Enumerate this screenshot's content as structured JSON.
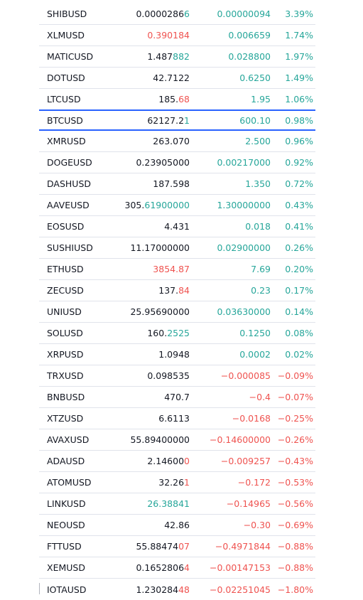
{
  "watchlist": {
    "rows": [
      {
        "symbol": "SHIBUSD",
        "last_main": "0.0000286",
        "last_tick": "6",
        "last_dir": "up",
        "change": "0.00000094",
        "change_pct": "3.39%",
        "dir": "up"
      },
      {
        "symbol": "XLMUSD",
        "last_main": "",
        "last_tick": "0.390184",
        "last_dir": "down",
        "change": "0.006659",
        "change_pct": "1.74%",
        "dir": "up"
      },
      {
        "symbol": "MATICUSD",
        "last_main": "1.487",
        "last_tick": "882",
        "last_dir": "up",
        "change": "0.028800",
        "change_pct": "1.97%",
        "dir": "up"
      },
      {
        "symbol": "DOTUSD",
        "last_main": "42.7122",
        "last_tick": "",
        "last_dir": "up",
        "change": "0.6250",
        "change_pct": "1.49%",
        "dir": "up"
      },
      {
        "symbol": "LTCUSD",
        "last_main": "185.",
        "last_tick": "68",
        "last_dir": "down",
        "change": "1.95",
        "change_pct": "1.06%",
        "dir": "up"
      },
      {
        "symbol": "BTCUSD",
        "last_main": "62127.2",
        "last_tick": "1",
        "last_dir": "up",
        "change": "600.10",
        "change_pct": "0.98%",
        "dir": "up",
        "selected": true
      },
      {
        "symbol": "XMRUSD",
        "last_main": "263.070",
        "last_tick": "",
        "last_dir": "up",
        "change": "2.500",
        "change_pct": "0.96%",
        "dir": "up"
      },
      {
        "symbol": "DOGEUSD",
        "last_main": "0.23905000",
        "last_tick": "",
        "last_dir": "up",
        "change": "0.00217000",
        "change_pct": "0.92%",
        "dir": "up"
      },
      {
        "symbol": "DASHUSD",
        "last_main": "187.598",
        "last_tick": "",
        "last_dir": "up",
        "change": "1.350",
        "change_pct": "0.72%",
        "dir": "up"
      },
      {
        "symbol": "AAVEUSD",
        "last_main": "305.",
        "last_tick": "61900000",
        "last_dir": "up",
        "change": "1.30000000",
        "change_pct": "0.43%",
        "dir": "up"
      },
      {
        "symbol": "EOSUSD",
        "last_main": "4.431",
        "last_tick": "",
        "last_dir": "up",
        "change": "0.018",
        "change_pct": "0.41%",
        "dir": "up"
      },
      {
        "symbol": "SUSHIUSD",
        "last_main": "11.17000000",
        "last_tick": "",
        "last_dir": "up",
        "change": "0.02900000",
        "change_pct": "0.26%",
        "dir": "up"
      },
      {
        "symbol": "ETHUSD",
        "last_main": "",
        "last_tick": "3854.87",
        "last_dir": "down",
        "change": "7.69",
        "change_pct": "0.20%",
        "dir": "up"
      },
      {
        "symbol": "ZECUSD",
        "last_main": "137.",
        "last_tick": "84",
        "last_dir": "down",
        "change": "0.23",
        "change_pct": "0.17%",
        "dir": "up"
      },
      {
        "symbol": "UNIUSD",
        "last_main": "25.95690000",
        "last_tick": "",
        "last_dir": "up",
        "change": "0.03630000",
        "change_pct": "0.14%",
        "dir": "up"
      },
      {
        "symbol": "SOLUSD",
        "last_main": "160.",
        "last_tick": "2525",
        "last_dir": "up",
        "change": "0.1250",
        "change_pct": "0.08%",
        "dir": "up"
      },
      {
        "symbol": "XRPUSD",
        "last_main": "1.0948",
        "last_tick": "",
        "last_dir": "up",
        "change": "0.0002",
        "change_pct": "0.02%",
        "dir": "up"
      },
      {
        "symbol": "TRXUSD",
        "last_main": "0.098535",
        "last_tick": "",
        "last_dir": "up",
        "change": "−0.000085",
        "change_pct": "−0.09%",
        "dir": "down"
      },
      {
        "symbol": "BNBUSD",
        "last_main": "470.7",
        "last_tick": "",
        "last_dir": "up",
        "change": "−0.4",
        "change_pct": "−0.07%",
        "dir": "down"
      },
      {
        "symbol": "XTZUSD",
        "last_main": "6.6113",
        "last_tick": "",
        "last_dir": "up",
        "change": "−0.0168",
        "change_pct": "−0.25%",
        "dir": "down"
      },
      {
        "symbol": "AVAXUSD",
        "last_main": "55.89400000",
        "last_tick": "",
        "last_dir": "up",
        "change": "−0.14600000",
        "change_pct": "−0.26%",
        "dir": "down"
      },
      {
        "symbol": "ADAUSD",
        "last_main": "2.14600",
        "last_tick": "0",
        "last_dir": "down",
        "change": "−0.009257",
        "change_pct": "−0.43%",
        "dir": "down"
      },
      {
        "symbol": "ATOMUSD",
        "last_main": "32.26",
        "last_tick": "1",
        "last_dir": "down",
        "change": "−0.172",
        "change_pct": "−0.53%",
        "dir": "down"
      },
      {
        "symbol": "LINKUSD",
        "last_main": "",
        "last_tick": "26.38841",
        "last_dir": "up",
        "change": "−0.14965",
        "change_pct": "−0.56%",
        "dir": "down"
      },
      {
        "symbol": "NEOUSD",
        "last_main": "42.86",
        "last_tick": "",
        "last_dir": "up",
        "change": "−0.30",
        "change_pct": "−0.69%",
        "dir": "down"
      },
      {
        "symbol": "FTTUSD",
        "last_main": "55.88474",
        "last_tick": "07",
        "last_dir": "down",
        "change": "−0.4971844",
        "change_pct": "−0.88%",
        "dir": "down"
      },
      {
        "symbol": "XEMUSD",
        "last_main": "0.1652806",
        "last_tick": "4",
        "last_dir": "down",
        "change": "−0.00147153",
        "change_pct": "−0.88%",
        "dir": "down"
      },
      {
        "symbol": "IOTAUSD",
        "last_main": "1.230284",
        "last_tick": "48",
        "last_dir": "down",
        "change": "−0.02251045",
        "change_pct": "−1.80%",
        "dir": "down"
      }
    ]
  }
}
